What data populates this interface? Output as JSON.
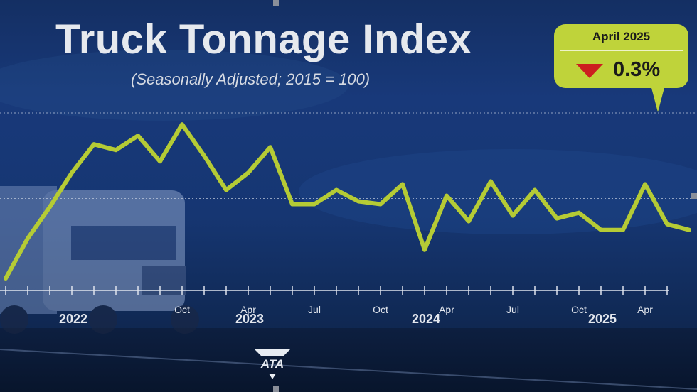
{
  "chart_data": {
    "type": "line",
    "title": "Truck Tonnage Index",
    "subtitle": "(Seasonally Adjusted; 2015 = 100)",
    "xlabel": "",
    "ylabel": "",
    "grid": true,
    "start_month": "2022-01",
    "month_labels": [
      "Oct",
      "Apr",
      "Jul",
      "Oct",
      "Apr",
      "Jul",
      "Oct",
      "Apr",
      "Jul",
      "Oct",
      "Apr"
    ],
    "year_labels": [
      "2022",
      "2023",
      "2024",
      "2025"
    ],
    "ylim": [
      112,
      118
    ],
    "series": [
      {
        "name": "",
        "color": "#b5cb35",
        "values": [
          112.2,
          113.6,
          114.7,
          115.9,
          116.9,
          116.7,
          117.2,
          116.3,
          117.6,
          116.5,
          115.3,
          115.9,
          116.8,
          114.8,
          114.8,
          115.3,
          114.9,
          114.8,
          115.5,
          113.2,
          115.1,
          114.2,
          115.6,
          114.4,
          115.3,
          114.3,
          114.5,
          113.9,
          113.9,
          115.5,
          114.1,
          113.9
        ]
      }
    ]
  },
  "callout": {
    "period": "April 2025",
    "change": "0.3%",
    "direction": "down",
    "direction_color": "#cc1f1f",
    "badge_color": "#bfd33a"
  },
  "logo": {
    "text": "ATA"
  }
}
